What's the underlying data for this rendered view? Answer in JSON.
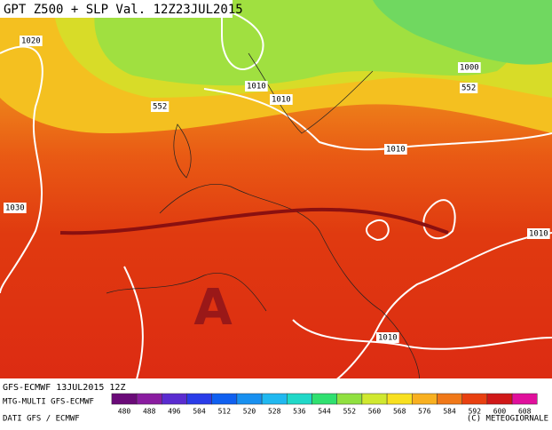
{
  "title": "GPT Z500 + SLP Val. 12Z23JUL2015",
  "map_labels": [
    "1020",
    "1010",
    "552",
    "1010",
    "1000",
    "552",
    "1010",
    "1030",
    "1010",
    "1010"
  ],
  "high_label": "A",
  "run_info": "GFS-ECMWF 13JUL2015 12Z",
  "model_info": "MTG-MULTI GFS-ECMWF",
  "source": "DATI GFS / ECMWF",
  "copyright": "(C) METEOGIORNALE",
  "colorbar": {
    "ticks": [
      480,
      488,
      496,
      504,
      512,
      520,
      528,
      536,
      544,
      552,
      560,
      568,
      576,
      584,
      592,
      600,
      608
    ],
    "colors": [
      "#6a0a78",
      "#8a1ca0",
      "#5a2cd0",
      "#2a3ce8",
      "#1060f0",
      "#1890f0",
      "#20b8f0",
      "#20d8c8",
      "#30e070",
      "#90e040",
      "#d0e830",
      "#f8e020",
      "#f8b020",
      "#f07818",
      "#e84010",
      "#d01818",
      "#e0109c"
    ]
  }
}
